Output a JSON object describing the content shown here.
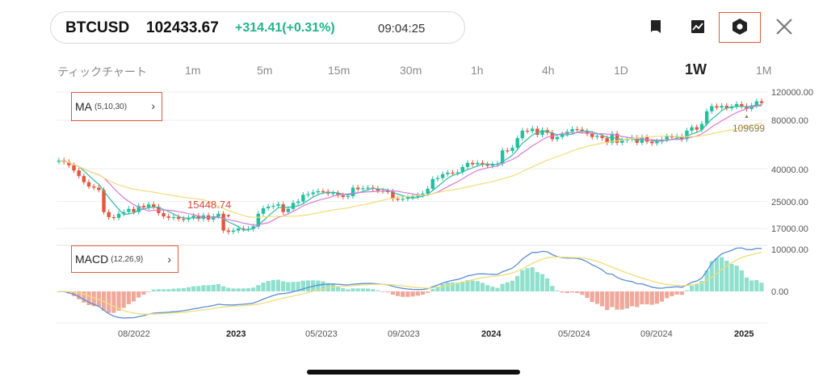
{
  "header": {
    "symbol": "BTCUSD",
    "price": "102433.67",
    "change": "+314.41(+0.31%)",
    "time": "09:04:25"
  },
  "toolbar": {
    "icons": [
      "bookmark-icon",
      "chart-compare-icon",
      "settings-icon",
      "close-icon"
    ]
  },
  "timeframes": [
    {
      "label": "ティックチャート",
      "active": false
    },
    {
      "label": "1m",
      "active": false
    },
    {
      "label": "5m",
      "active": false
    },
    {
      "label": "15m",
      "active": false
    },
    {
      "label": "30m",
      "active": false
    },
    {
      "label": "1h",
      "active": false
    },
    {
      "label": "4h",
      "active": false
    },
    {
      "label": "1D",
      "active": false
    },
    {
      "label": "1W",
      "active": true
    },
    {
      "label": "1M",
      "active": false
    }
  ],
  "indicators": {
    "ma": {
      "name": "MA",
      "params": "(5,10,30)"
    },
    "macd": {
      "name": "MACD",
      "params": "(12,26,9)"
    }
  },
  "colors": {
    "up": "#1fc1a0",
    "down": "#e8553a",
    "ma5": "#33bba0",
    "ma10": "#d87ad8",
    "ma30": "#f0dd7a",
    "dif": "#5a8ed6",
    "dea": "#f0dd7a",
    "hist_pos": "#8fe0cd",
    "hist_neg": "#f1a89a"
  },
  "chart_data": {
    "type": "candlestick",
    "price_axis": {
      "ticks": [
        "120000.00",
        "80000.00",
        "40000.00",
        "25000.00",
        "17000.00"
      ],
      "scale": "log"
    },
    "macd_axis": {
      "ticks": [
        "10000.00",
        "0.00"
      ]
    },
    "x_labels": [
      {
        "label": "08/2022",
        "bold": false
      },
      {
        "label": "2023",
        "bold": true
      },
      {
        "label": "05/2023",
        "bold": false
      },
      {
        "label": "09/2023",
        "bold": false
      },
      {
        "label": "2024",
        "bold": true
      },
      {
        "label": "05/2024",
        "bold": false
      },
      {
        "label": "09/2024",
        "bold": false
      },
      {
        "label": "2025",
        "bold": true
      }
    ],
    "annotations": {
      "low": "15448.74",
      "high": "109699"
    },
    "series": {
      "close": [
        45000,
        44000,
        42000,
        39000,
        36000,
        33000,
        31000,
        30500,
        29500,
        21500,
        20000,
        19800,
        21000,
        21500,
        22500,
        21500,
        23500,
        23000,
        24000,
        23200,
        21200,
        20200,
        19800,
        20000,
        19500,
        19300,
        19800,
        20400,
        19500,
        20500,
        19300,
        20200,
        21000,
        16500,
        16200,
        16500,
        17000,
        16800,
        16900,
        17500,
        21000,
        22700,
        23200,
        23500,
        24000,
        21500,
        22500,
        24500,
        25000,
        27500,
        27800,
        28500,
        29000,
        28800,
        28000,
        28200,
        27300,
        26700,
        27000,
        30500,
        29800,
        30200,
        30500,
        30000,
        29200,
        29000,
        28800,
        26000,
        25900,
        26000,
        26500,
        26800,
        27400,
        28000,
        30000,
        34500,
        35000,
        37000,
        37800,
        37500,
        38000,
        41000,
        43500,
        42600,
        43500,
        42500,
        41700,
        42500,
        43000,
        52000,
        51700,
        54000,
        62000,
        69000,
        68500,
        71000,
        65000,
        69500,
        67000,
        61000,
        63000,
        65500,
        68000,
        70500,
        70000,
        68500,
        66000,
        63000,
        64000,
        62000,
        58000,
        66000,
        58000,
        60000,
        61000,
        62500,
        58000,
        62800,
        59000,
        57600,
        59000,
        60700,
        63500,
        63000,
        63500,
        61000,
        69000,
        72500,
        70000,
        76000,
        91000,
        98000,
        96000,
        98500,
        95000,
        97000,
        101000,
        98000,
        94000,
        99000,
        105000,
        102433
      ]
    }
  }
}
